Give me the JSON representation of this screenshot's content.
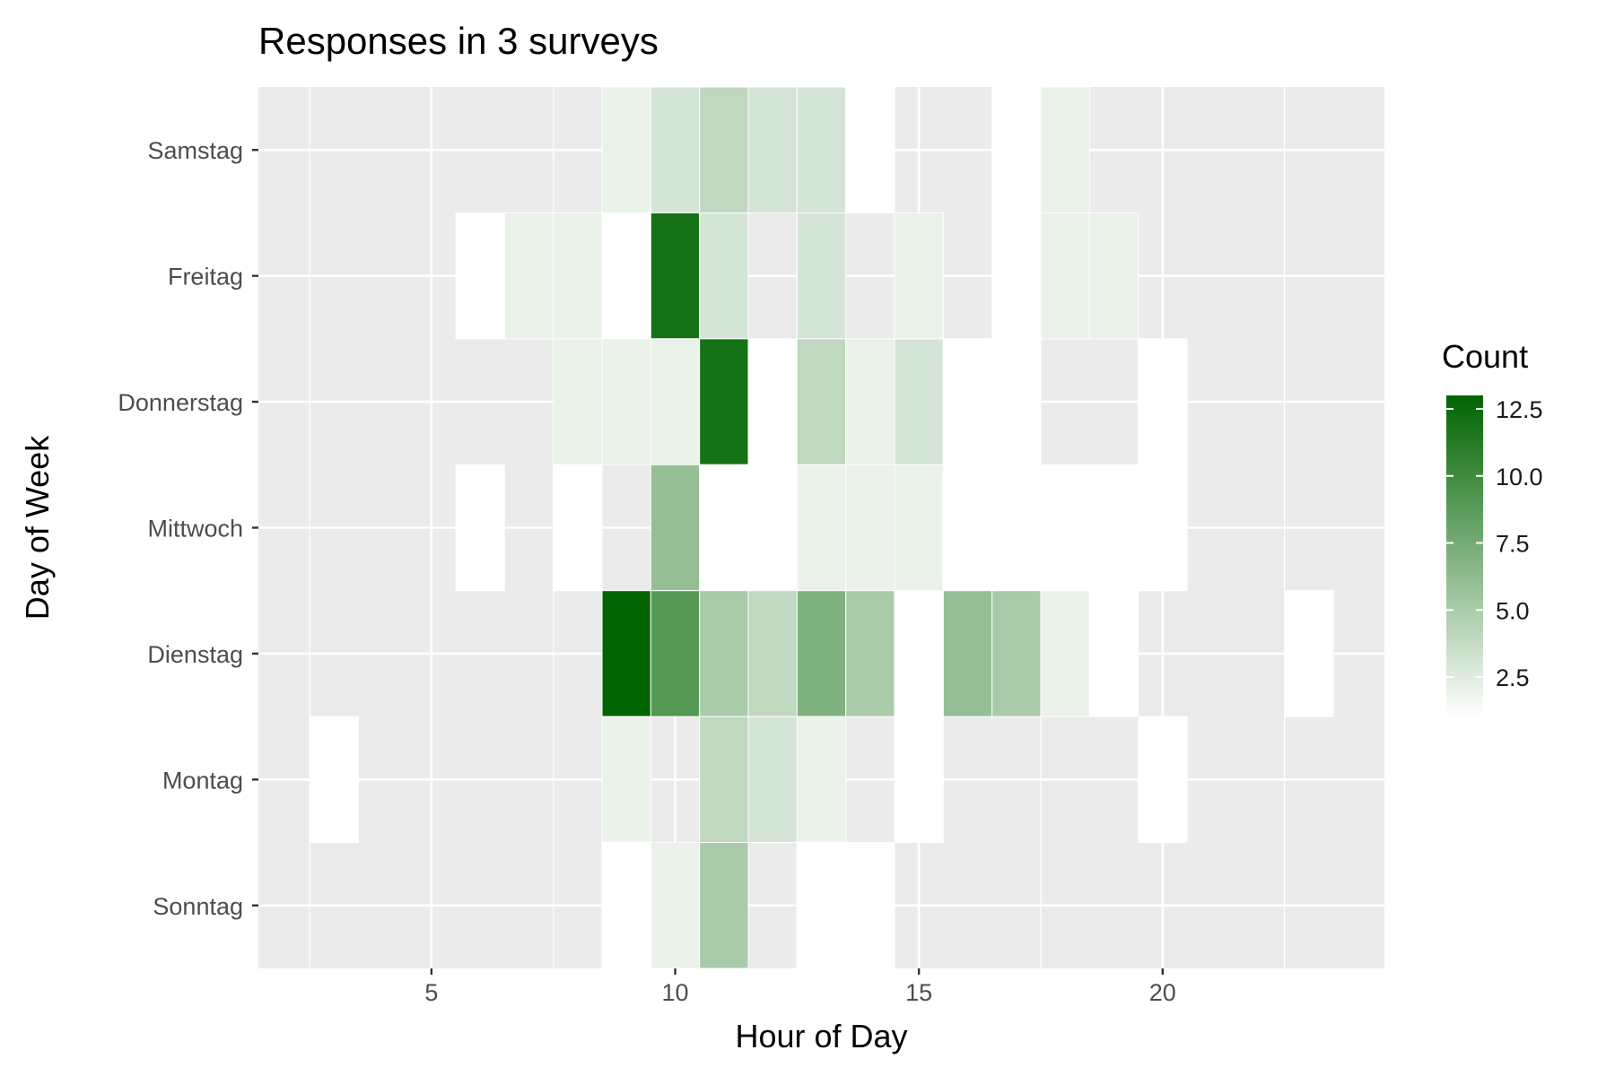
{
  "chart_data": {
    "type": "heatmap",
    "title": "Responses in 3 surveys",
    "xlabel": "Hour of Day",
    "ylabel": "Day of Week",
    "x_ticks": [
      5,
      10,
      15,
      20
    ],
    "xlim": [
      1.45,
      24.55
    ],
    "y_categories": [
      "Sonntag",
      "Montag",
      "Dienstag",
      "Mittwoch",
      "Donnerstag",
      "Freitag",
      "Samstag"
    ],
    "grid": true,
    "legend": {
      "title": "Count",
      "position": "right",
      "range": [
        1,
        13
      ],
      "ticks": [
        "2.5",
        "5.0",
        "7.5",
        "10.0",
        "12.5"
      ],
      "tick_values": [
        2.5,
        5.0,
        7.5,
        10.0,
        12.5
      ],
      "low_color": "#ffffff",
      "high_color": "#006400"
    },
    "colors": {
      "panel_background": "#ebebeb",
      "grid": "#ffffff",
      "tile_border": "#ffffff"
    },
    "cells": [
      {
        "day": "Samstag",
        "hour": 9,
        "count": 2
      },
      {
        "day": "Samstag",
        "hour": 10,
        "count": 3
      },
      {
        "day": "Samstag",
        "hour": 11,
        "count": 4
      },
      {
        "day": "Samstag",
        "hour": 12,
        "count": 3
      },
      {
        "day": "Samstag",
        "hour": 13,
        "count": 3
      },
      {
        "day": "Samstag",
        "hour": 14,
        "count": 1
      },
      {
        "day": "Samstag",
        "hour": 17,
        "count": 1
      },
      {
        "day": "Samstag",
        "hour": 18,
        "count": 2
      },
      {
        "day": "Freitag",
        "hour": 6,
        "count": 1
      },
      {
        "day": "Freitag",
        "hour": 7,
        "count": 2
      },
      {
        "day": "Freitag",
        "hour": 8,
        "count": 2
      },
      {
        "day": "Freitag",
        "hour": 9,
        "count": 1
      },
      {
        "day": "Freitag",
        "hour": 10,
        "count": 12
      },
      {
        "day": "Freitag",
        "hour": 11,
        "count": 3
      },
      {
        "day": "Freitag",
        "hour": 13,
        "count": 3
      },
      {
        "day": "Freitag",
        "hour": 15,
        "count": 2
      },
      {
        "day": "Freitag",
        "hour": 17,
        "count": 1
      },
      {
        "day": "Freitag",
        "hour": 18,
        "count": 2
      },
      {
        "day": "Freitag",
        "hour": 19,
        "count": 2
      },
      {
        "day": "Donnerstag",
        "hour": 8,
        "count": 2
      },
      {
        "day": "Donnerstag",
        "hour": 9,
        "count": 2
      },
      {
        "day": "Donnerstag",
        "hour": 10,
        "count": 2
      },
      {
        "day": "Donnerstag",
        "hour": 11,
        "count": 12
      },
      {
        "day": "Donnerstag",
        "hour": 12,
        "count": 1
      },
      {
        "day": "Donnerstag",
        "hour": 13,
        "count": 4
      },
      {
        "day": "Donnerstag",
        "hour": 14,
        "count": 2
      },
      {
        "day": "Donnerstag",
        "hour": 15,
        "count": 3
      },
      {
        "day": "Donnerstag",
        "hour": 16,
        "count": 1
      },
      {
        "day": "Donnerstag",
        "hour": 17,
        "count": 1
      },
      {
        "day": "Donnerstag",
        "hour": 20,
        "count": 1
      },
      {
        "day": "Mittwoch",
        "hour": 6,
        "count": 1
      },
      {
        "day": "Mittwoch",
        "hour": 8,
        "count": 1
      },
      {
        "day": "Mittwoch",
        "hour": 10,
        "count": 6
      },
      {
        "day": "Mittwoch",
        "hour": 11,
        "count": 1
      },
      {
        "day": "Mittwoch",
        "hour": 12,
        "count": 1
      },
      {
        "day": "Mittwoch",
        "hour": 13,
        "count": 2
      },
      {
        "day": "Mittwoch",
        "hour": 14,
        "count": 2
      },
      {
        "day": "Mittwoch",
        "hour": 15,
        "count": 2
      },
      {
        "day": "Mittwoch",
        "hour": 16,
        "count": 1
      },
      {
        "day": "Mittwoch",
        "hour": 17,
        "count": 1
      },
      {
        "day": "Mittwoch",
        "hour": 18,
        "count": 1
      },
      {
        "day": "Mittwoch",
        "hour": 19,
        "count": 1
      },
      {
        "day": "Mittwoch",
        "hour": 20,
        "count": 1
      },
      {
        "day": "Dienstag",
        "hour": 9,
        "count": 13
      },
      {
        "day": "Dienstag",
        "hour": 10,
        "count": 9
      },
      {
        "day": "Dienstag",
        "hour": 11,
        "count": 5
      },
      {
        "day": "Dienstag",
        "hour": 12,
        "count": 4
      },
      {
        "day": "Dienstag",
        "hour": 13,
        "count": 7
      },
      {
        "day": "Dienstag",
        "hour": 14,
        "count": 5
      },
      {
        "day": "Dienstag",
        "hour": 15,
        "count": 1
      },
      {
        "day": "Dienstag",
        "hour": 16,
        "count": 6
      },
      {
        "day": "Dienstag",
        "hour": 17,
        "count": 5
      },
      {
        "day": "Dienstag",
        "hour": 18,
        "count": 2
      },
      {
        "day": "Dienstag",
        "hour": 19,
        "count": 1
      },
      {
        "day": "Dienstag",
        "hour": 23,
        "count": 1
      },
      {
        "day": "Montag",
        "hour": 3,
        "count": 1
      },
      {
        "day": "Montag",
        "hour": 9,
        "count": 2
      },
      {
        "day": "Montag",
        "hour": 11,
        "count": 4
      },
      {
        "day": "Montag",
        "hour": 12,
        "count": 3
      },
      {
        "day": "Montag",
        "hour": 13,
        "count": 2
      },
      {
        "day": "Montag",
        "hour": 15,
        "count": 1
      },
      {
        "day": "Montag",
        "hour": 20,
        "count": 1
      },
      {
        "day": "Sonntag",
        "hour": 9,
        "count": 1
      },
      {
        "day": "Sonntag",
        "hour": 10,
        "count": 2
      },
      {
        "day": "Sonntag",
        "hour": 11,
        "count": 5
      },
      {
        "day": "Sonntag",
        "hour": 13,
        "count": 1
      },
      {
        "day": "Sonntag",
        "hour": 14,
        "count": 1
      }
    ]
  }
}
